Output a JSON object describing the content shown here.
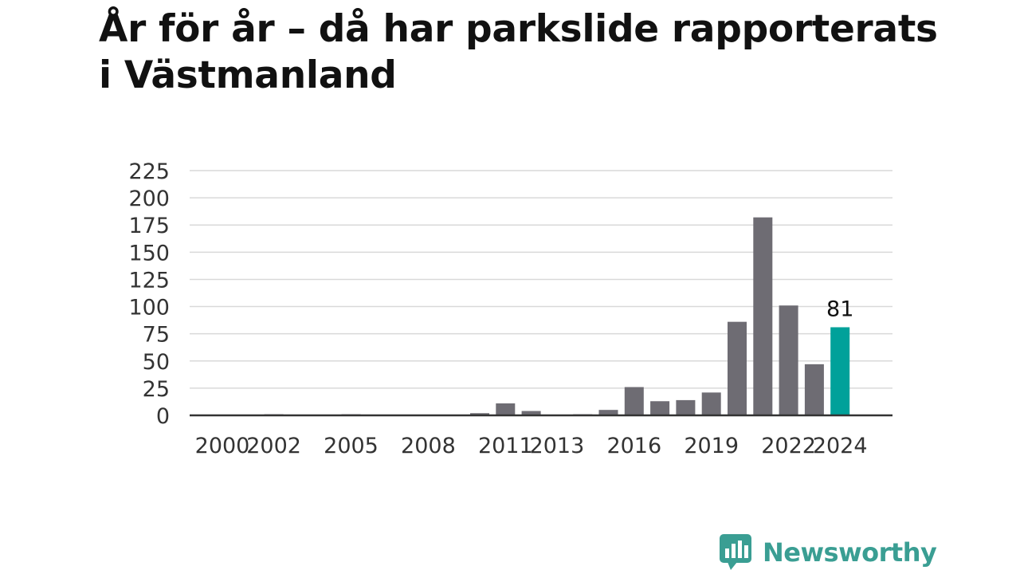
{
  "title": "År för år – då har parkslide rapporterats i Västmanland",
  "brand": {
    "name": "Newsworthy",
    "icon": "bar-chart-speech-bubble-icon",
    "color": "#3a9e93"
  },
  "colors": {
    "bar": "#6e6c73",
    "highlight": "#00a19a",
    "grid": "#d9d9d9",
    "axis": "#333333"
  },
  "chart_data": {
    "type": "bar",
    "title": "År för år – då har parkslide rapporterats i Västmanland",
    "xlabel": "",
    "ylabel": "",
    "x": [
      2000,
      2001,
      2002,
      2003,
      2004,
      2005,
      2006,
      2007,
      2008,
      2009,
      2010,
      2011,
      2012,
      2013,
      2014,
      2015,
      2016,
      2017,
      2018,
      2019,
      2020,
      2021,
      2022,
      2023,
      2024
    ],
    "values": [
      0,
      0,
      1,
      0,
      0,
      1,
      0,
      0,
      0,
      0,
      2,
      11,
      4,
      0,
      1,
      5,
      26,
      13,
      14,
      21,
      86,
      182,
      101,
      47,
      81
    ],
    "x_tick_labels": [
      "2000",
      "2002",
      "2005",
      "2008",
      "2011",
      "2013",
      "2016",
      "2019",
      "2022",
      "2024"
    ],
    "y_ticks": [
      0,
      25,
      50,
      75,
      100,
      125,
      150,
      175,
      200,
      225
    ],
    "ylim": [
      0,
      225
    ],
    "grid": true,
    "highlight": {
      "x": 2024,
      "label": "81"
    }
  }
}
